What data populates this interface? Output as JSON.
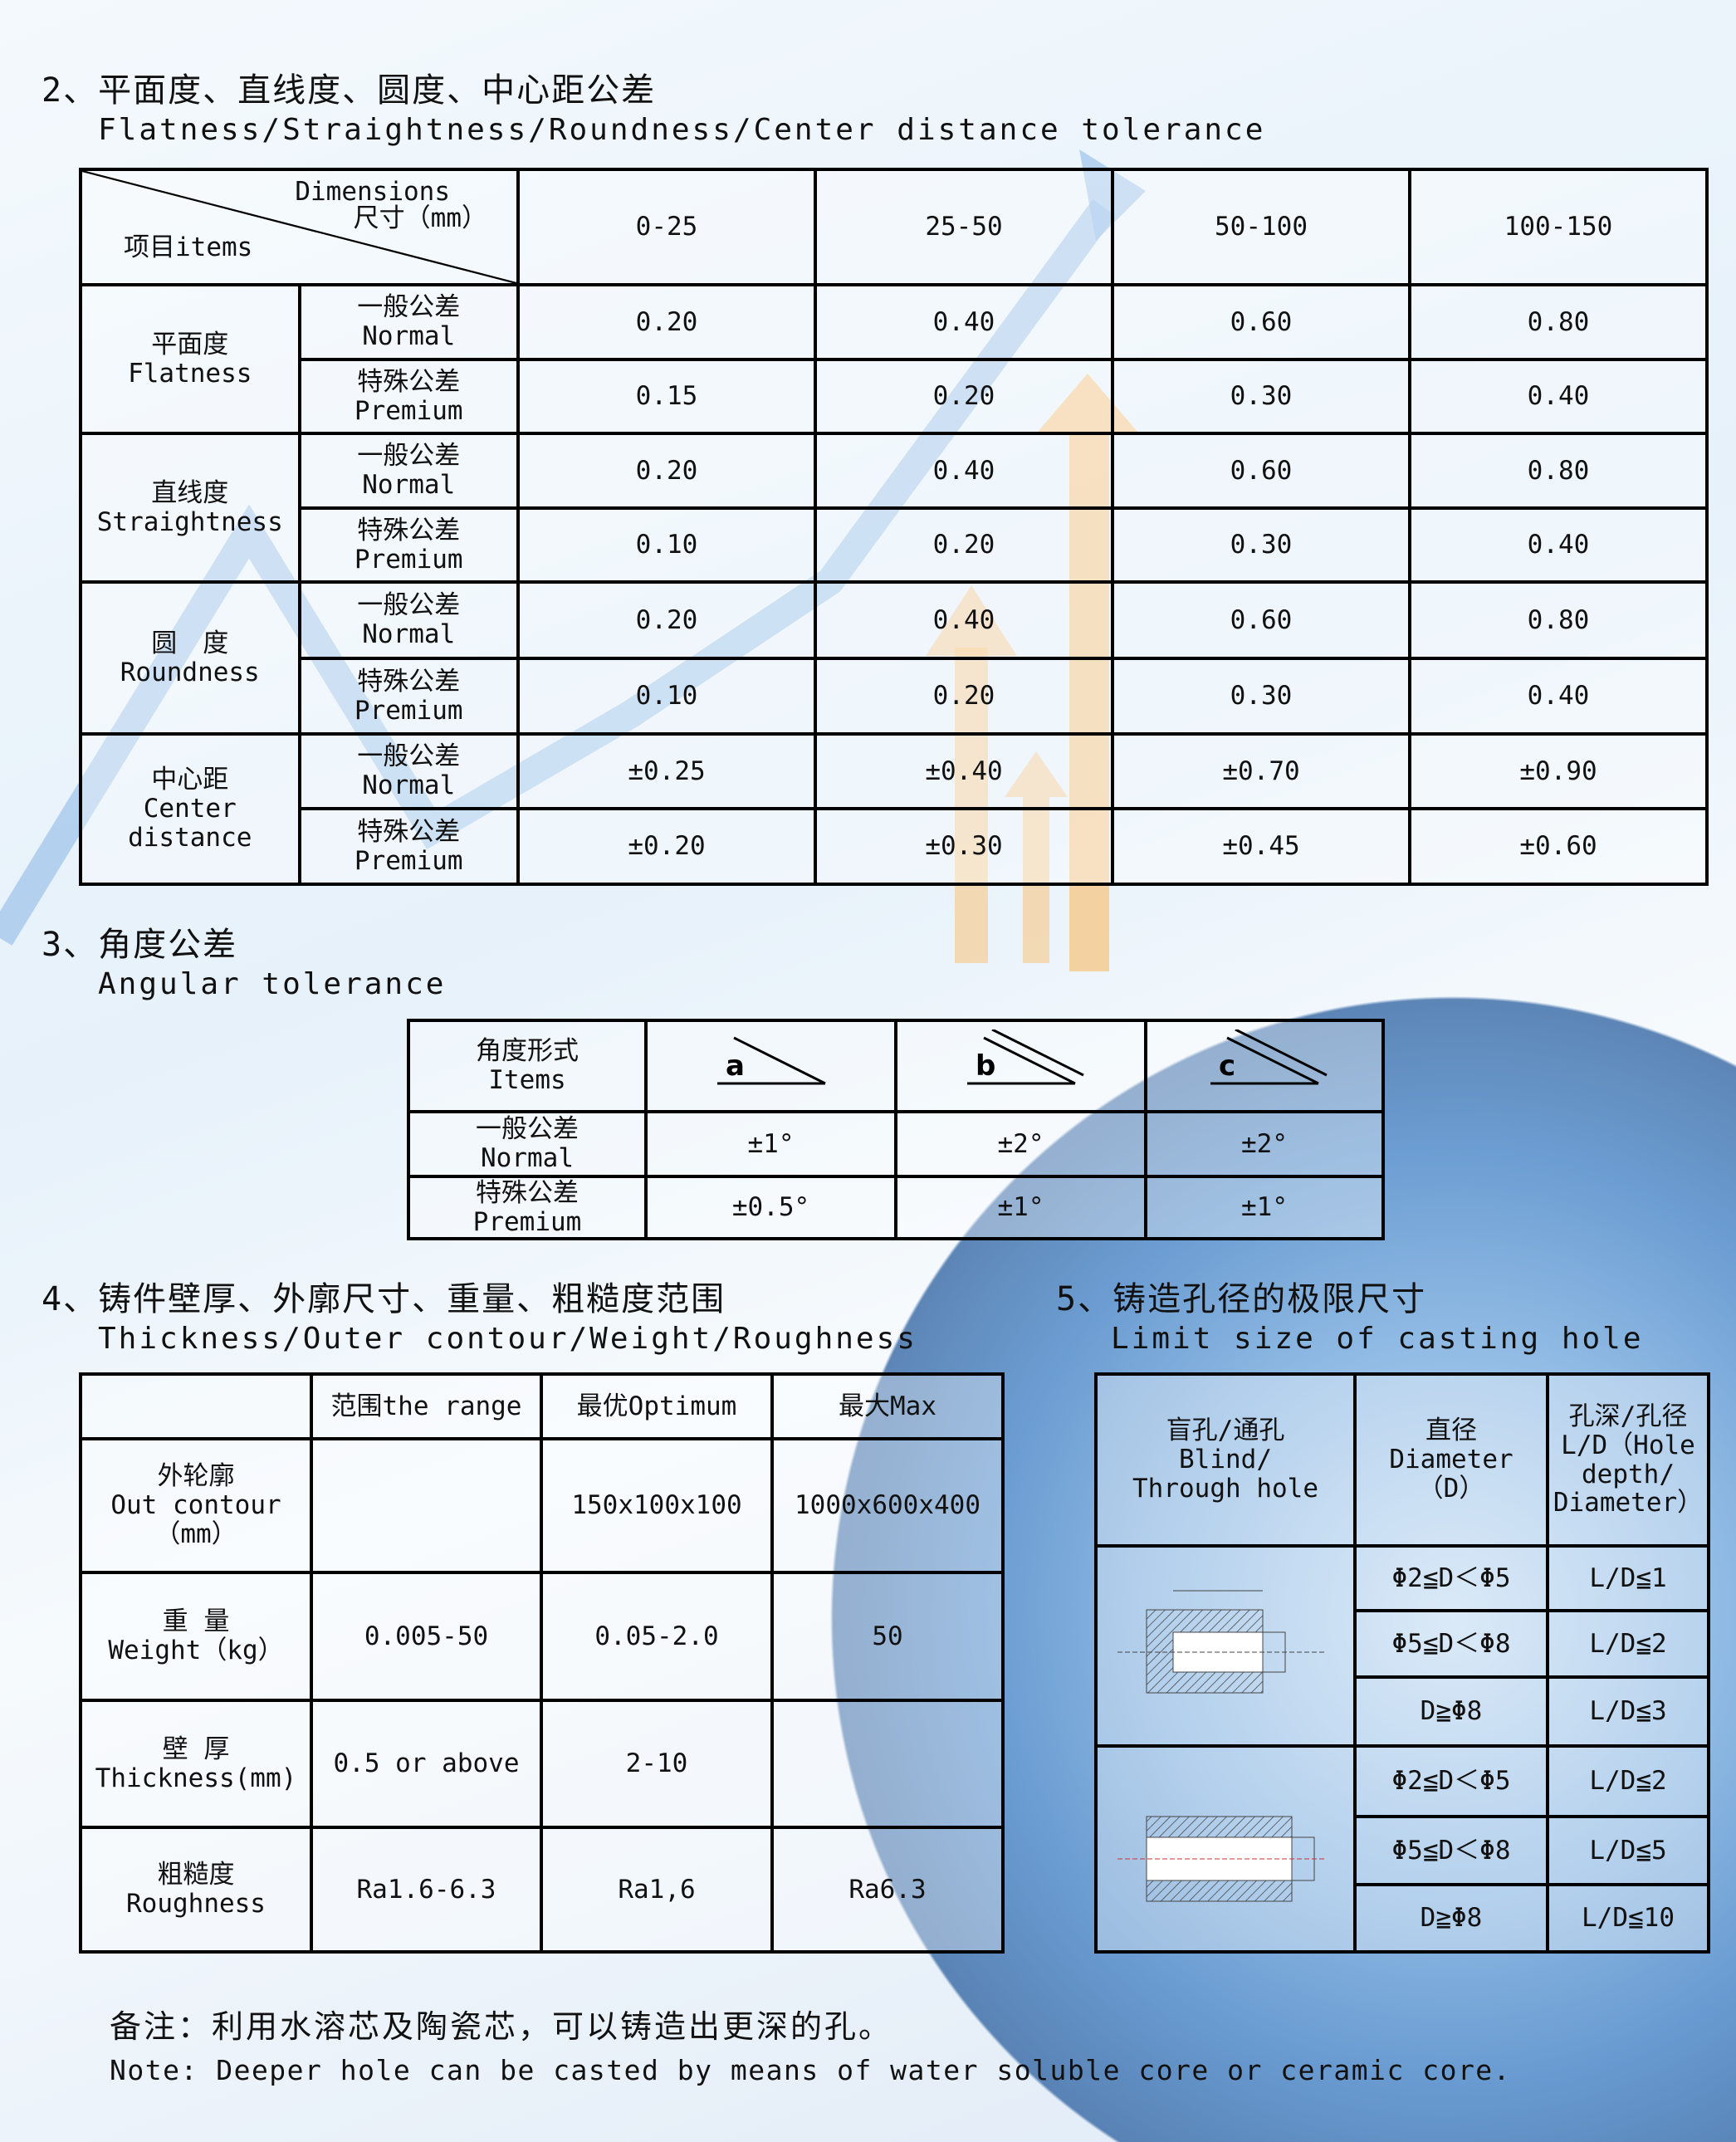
{
  "section2": {
    "title": "2、平面度、直线度、圆度、中心距公差",
    "subtitle": "Flatness/Straightness/Roundness/Center distance tolerance",
    "header": {
      "dimensions": "Dimensions",
      "size": "尺寸（mm）",
      "items": "项目items",
      "ranges": [
        "0-25",
        "25-50",
        "50-100",
        "100-150"
      ]
    },
    "groups": [
      {
        "cn": "平面度",
        "en": "Flatness",
        "rows": [
          {
            "cn": "一般公差",
            "en": "Normal",
            "values": [
              "0.20",
              "0.40",
              "0.60",
              "0.80"
            ]
          },
          {
            "cn": "特殊公差",
            "en": "Premium",
            "values": [
              "0.15",
              "0.20",
              "0.30",
              "0.40"
            ]
          }
        ]
      },
      {
        "cn": "直线度",
        "en": "Straightness",
        "rows": [
          {
            "cn": "一般公差",
            "en": "Normal",
            "values": [
              "0.20",
              "0.40",
              "0.60",
              "0.80"
            ]
          },
          {
            "cn": "特殊公差",
            "en": "Premium",
            "values": [
              "0.10",
              "0.20",
              "0.30",
              "0.40"
            ]
          }
        ]
      },
      {
        "cn": "圆　度",
        "en": "Roundness",
        "rows": [
          {
            "cn": "一般公差",
            "en": "Normal",
            "values": [
              "0.20",
              "0.40",
              "0.60",
              "0.80"
            ]
          },
          {
            "cn": "特殊公差",
            "en": "Premium",
            "values": [
              "0.10",
              "0.20",
              "0.30",
              "0.40"
            ]
          }
        ]
      },
      {
        "cn": "中心距",
        "en": "Center distance",
        "rows": [
          {
            "cn": "一般公差",
            "en": "Normal",
            "values": [
              "±0.25",
              "±0.40",
              "±0.70",
              "±0.90"
            ]
          },
          {
            "cn": "特殊公差",
            "en": "Premium",
            "values": [
              "±0.20",
              "±0.30",
              "±0.45",
              "±0.60"
            ]
          }
        ]
      }
    ]
  },
  "section3": {
    "title": "3、角度公差",
    "subtitle": "Angular tolerance",
    "header": {
      "cn": "角度形式",
      "en": "Items",
      "icons": [
        "angle-a-icon",
        "angle-b-icon",
        "angle-c-icon"
      ],
      "icon_labels": [
        "a",
        "b",
        "c"
      ]
    },
    "rows": [
      {
        "cn": "一般公差",
        "en": "Normal",
        "values": [
          "±1°",
          "±2°",
          "±2°"
        ]
      },
      {
        "cn": "特殊公差",
        "en": "Premium",
        "values": [
          "±0.5°",
          "±1°",
          "±1°"
        ]
      }
    ]
  },
  "section4": {
    "title": "4、铸件壁厚、外廓尺寸、重量、粗糙度范围",
    "subtitle": "Thickness/Outer contour/Weight/Roughness",
    "header": [
      "",
      "范围the range",
      "最优Optimum",
      "最大Max"
    ],
    "rows": [
      {
        "cn": "外轮廓",
        "en": [
          "Out contour",
          "（mm）"
        ],
        "values": [
          "",
          "150x100x100",
          "1000x600x400"
        ]
      },
      {
        "cn": "重 量",
        "en": [
          "Weight（kg）"
        ],
        "values": [
          "0.005-50",
          "0.05-2.0",
          "50"
        ]
      },
      {
        "cn": "壁 厚",
        "en": [
          "Thickness(mm)"
        ],
        "values": [
          "0.5 or above",
          "2-10",
          ""
        ]
      },
      {
        "cn": "粗糙度",
        "en": [
          "Roughness"
        ],
        "values": [
          "Ra1.6-6.3",
          "Ra1,6",
          "Ra6.3"
        ]
      }
    ]
  },
  "section5": {
    "title": "5、铸造孔径的极限尺寸",
    "subtitle": "Limit size of casting hole",
    "header": [
      [
        "盲孔/通孔",
        "Blind/",
        "Through hole"
      ],
      [
        "直径",
        "Diameter",
        "（D）"
      ],
      [
        "孔深/孔径",
        "L/D（Hole",
        "depth/",
        "Diameter）"
      ]
    ],
    "groups": [
      {
        "diagram": "blind-hole-diagram",
        "rows": [
          [
            "Φ2≦D＜Φ5",
            "L/D≦1"
          ],
          [
            "Φ5≦D＜Φ8",
            "L/D≦2"
          ],
          [
            "D≧Φ8",
            "L/D≦3"
          ]
        ]
      },
      {
        "diagram": "through-hole-diagram",
        "rows": [
          [
            "Φ2≦D＜Φ5",
            "L/D≦2"
          ],
          [
            "Φ5≦D＜Φ8",
            "L/D≦5"
          ],
          [
            "D≧Φ8",
            "L/D≦10"
          ]
        ]
      }
    ]
  },
  "note": {
    "cn": "备注：利用水溶芯及陶瓷芯，可以铸造出更深的孔。",
    "en": "Note: Deeper hole can be casted by means of water soluble core or ceramic core."
  }
}
